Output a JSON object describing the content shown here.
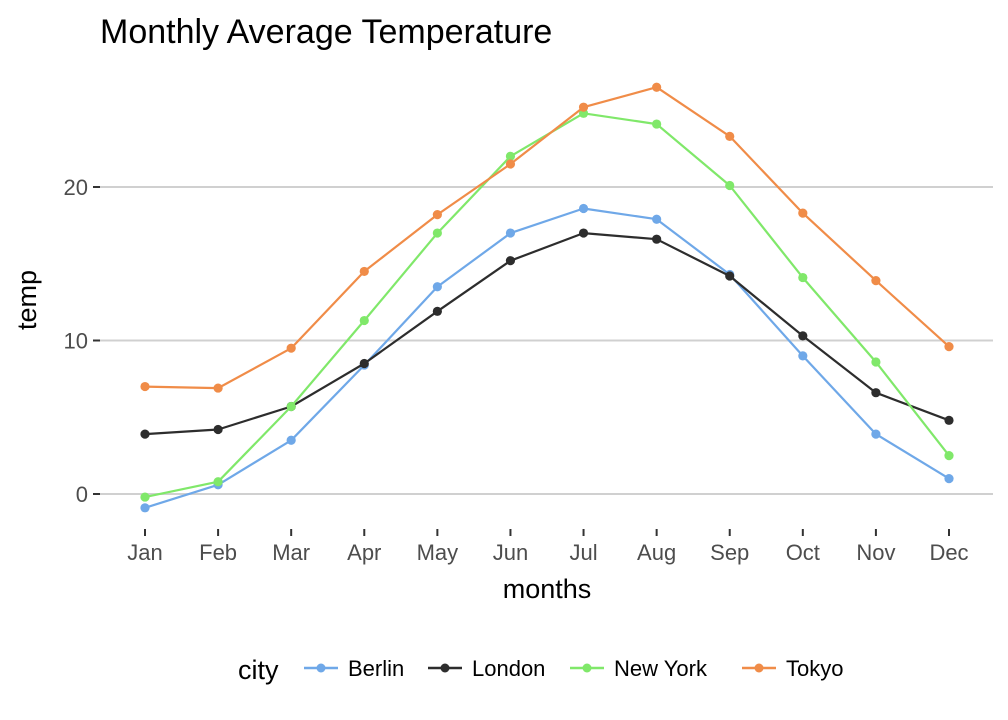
{
  "chart_data": {
    "type": "line",
    "title": "Monthly Average Temperature",
    "xlabel": "months",
    "ylabel": "temp",
    "categories": [
      "Jan",
      "Feb",
      "Mar",
      "Apr",
      "May",
      "Jun",
      "Jul",
      "Aug",
      "Sep",
      "Oct",
      "Nov",
      "Dec"
    ],
    "yticks": [
      0,
      10,
      20
    ],
    "ylim": [
      -1.5,
      27.5
    ],
    "grid": "major-y",
    "legend": {
      "title": "city",
      "position": "bottom"
    },
    "series": [
      {
        "name": "Berlin",
        "color": "#6fa8e8",
        "values": [
          -0.9,
          0.6,
          3.5,
          8.4,
          13.5,
          17.0,
          18.6,
          17.9,
          14.3,
          9.0,
          3.9,
          1.0
        ]
      },
      {
        "name": "London",
        "color": "#2d2d2d",
        "values": [
          3.9,
          4.2,
          5.7,
          8.5,
          11.9,
          15.2,
          17.0,
          16.6,
          14.2,
          10.3,
          6.6,
          4.8
        ]
      },
      {
        "name": "New York",
        "color": "#80e86a",
        "values": [
          -0.2,
          0.8,
          5.7,
          11.3,
          17.0,
          22.0,
          24.8,
          24.1,
          20.1,
          14.1,
          8.6,
          2.5
        ]
      },
      {
        "name": "Tokyo",
        "color": "#f08c48",
        "values": [
          7.0,
          6.9,
          9.5,
          14.5,
          18.2,
          21.5,
          25.2,
          26.5,
          23.3,
          18.3,
          13.9,
          9.6
        ]
      }
    ]
  }
}
